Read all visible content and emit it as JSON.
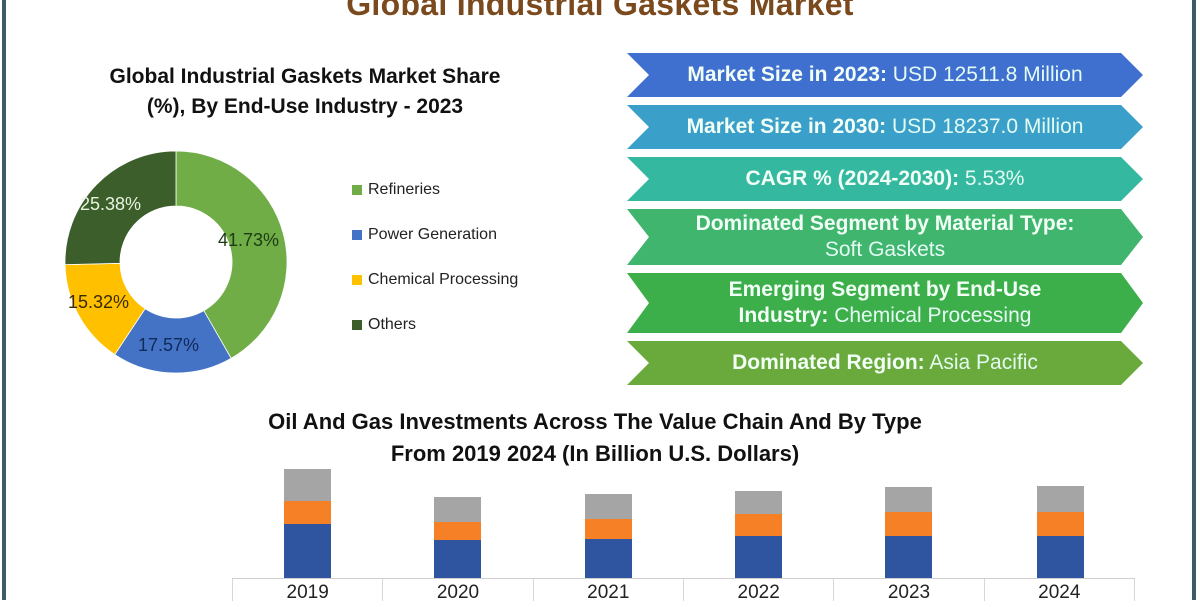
{
  "page": {
    "title": "Global Industrial Gaskets Market",
    "frame_color": "#3d5a66",
    "title_color": "#7a4a1e"
  },
  "donut": {
    "title_line1": "Global Industrial Gaskets Market Share",
    "title_line2": "(%), By End-Use Industry - 2023",
    "legend": [
      {
        "label": "Refineries",
        "color": "#70ad47"
      },
      {
        "label": "Power Generation",
        "color": "#4472c4"
      },
      {
        "label": "Chemical Processing",
        "color": "#ffc000"
      },
      {
        "label": "Others",
        "color": "#3b5e2a"
      }
    ],
    "labels": [
      "41.73%",
      "17.57%",
      "15.32%",
      "25.38%"
    ]
  },
  "banners": [
    {
      "key": "Market Size in 2023:",
      "value": " USD 12511.8 Million",
      "color": "#3f6fcf"
    },
    {
      "key": "Market Size in 2030:",
      "value": " USD 18237.0 Million",
      "color": "#3a9fc9"
    },
    {
      "key": "CAGR % (2024-2030):",
      "value": " 5.53%",
      "color": "#34b9a0"
    },
    {
      "key": "Dominated Segment by Material Type:",
      "value": "Soft Gaskets",
      "color": "#3fb56e"
    },
    {
      "key_line1": "Emerging Segment by End-Use",
      "key": "Industry:",
      "value": " Chemical Processing",
      "color": "#3cae4a"
    },
    {
      "key": "Dominated Region:",
      "value": " Asia Pacific",
      "color": "#6aaa3c"
    }
  ],
  "bar_chart": {
    "title_line1": "Oil And Gas Investments Across The Value Chain And By Type",
    "title_line2": "From 2019 2024 (In Billion U.S. Dollars)",
    "categories": [
      "2019",
      "2020",
      "2021",
      "2022",
      "2023",
      "2024"
    ],
    "colors": {
      "bottom": "#2f55a0",
      "middle": "#f58025",
      "top": "#a5a5a5"
    }
  },
  "chart_data": [
    {
      "type": "pie",
      "subtype": "donut",
      "title": "Global Industrial Gaskets Market Share (%), By End-Use Industry - 2023",
      "categories": [
        "Refineries",
        "Power Generation",
        "Chemical Processing",
        "Others"
      ],
      "values": [
        41.73,
        17.57,
        15.32,
        25.38
      ],
      "colors": [
        "#70ad47",
        "#4472c4",
        "#ffc000",
        "#3b5e2a"
      ],
      "legend_position": "right"
    },
    {
      "type": "bar",
      "stacked": true,
      "title": "Oil And Gas Investments Across The Value Chain And By Type From 2019 2024 (In Billion U.S. Dollars)",
      "xlabel": "",
      "ylabel": "",
      "categories": [
        "2019",
        "2020",
        "2021",
        "2022",
        "2023",
        "2024"
      ],
      "series": [
        {
          "name": "Series 1 (blue, bottom)",
          "color": "#2f55a0",
          "values": [
            54,
            38,
            39,
            42,
            42,
            42
          ]
        },
        {
          "name": "Series 2 (orange, middle)",
          "color": "#f58025",
          "values": [
            23,
            18,
            20,
            22,
            24,
            24
          ]
        },
        {
          "name": "Series 3 (gray, top)",
          "color": "#a5a5a5",
          "values": [
            32,
            25,
            25,
            23,
            25,
            26
          ]
        }
      ],
      "note": "No y-axis shown; values are relative segment heights estimated from pixels",
      "grid": false
    }
  ]
}
